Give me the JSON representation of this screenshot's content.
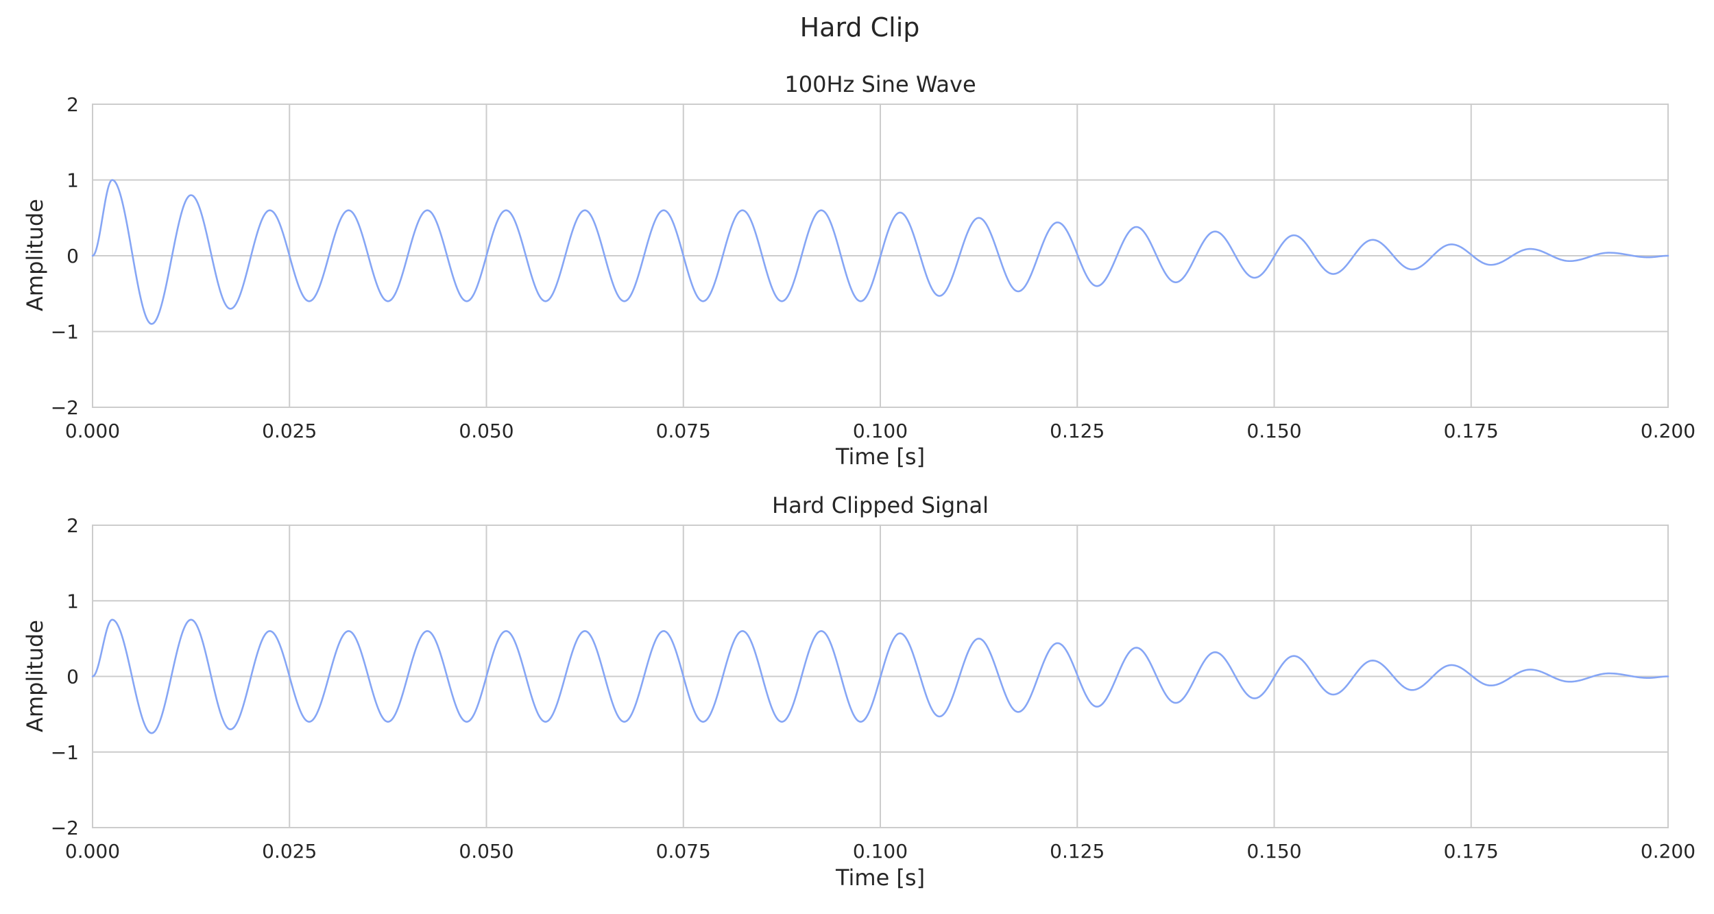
{
  "figure": {
    "title": "Hard Clip"
  },
  "colors": {
    "line": "#86a6f5",
    "grid": "#cccccc",
    "text": "#262626",
    "background": "#ffffff"
  },
  "chart_data": [
    {
      "type": "line",
      "title": "100Hz Sine Wave",
      "xlabel": "Time [s]",
      "ylabel": "Amplitude",
      "xlim": [
        0.0,
        0.2
      ],
      "ylim": [
        -2,
        2
      ],
      "grid": true,
      "xticks": [
        "0.000",
        "0.025",
        "0.050",
        "0.075",
        "0.100",
        "0.125",
        "0.150",
        "0.175",
        "0.200"
      ],
      "yticks": [
        "2",
        "1",
        "0",
        "−1",
        "−2"
      ],
      "xtick_values": [
        0.0,
        0.025,
        0.05,
        0.075,
        0.1,
        0.125,
        0.15,
        0.175,
        0.2
      ],
      "ytick_values": [
        2,
        1,
        0,
        -1,
        -2
      ],
      "series": [
        {
          "x": [
            0.0,
            0.0025,
            0.0075,
            0.0125,
            0.0175,
            0.0225,
            0.0275,
            0.0325,
            0.0375,
            0.0425,
            0.0475,
            0.0525,
            0.0575,
            0.0625,
            0.0675,
            0.0725,
            0.0775,
            0.0825,
            0.0875,
            0.0925,
            0.0975,
            0.1025,
            0.1075,
            0.1125,
            0.1175,
            0.1225,
            0.1275,
            0.1325,
            0.1375,
            0.1425,
            0.1475,
            0.1525,
            0.1575,
            0.1625,
            0.1675,
            0.1725,
            0.1775,
            0.1825,
            0.1875,
            0.1925,
            0.1975,
            0.2
          ],
          "y": [
            0.0,
            1.0,
            -0.9,
            0.8,
            -0.7,
            0.6,
            -0.6,
            0.6,
            -0.6,
            0.6,
            -0.6,
            0.6,
            -0.6,
            0.6,
            -0.6,
            0.6,
            -0.6,
            0.6,
            -0.6,
            0.6,
            -0.6,
            0.57,
            -0.53,
            0.5,
            -0.47,
            0.44,
            -0.4,
            0.38,
            -0.35,
            0.32,
            -0.29,
            0.27,
            -0.24,
            0.21,
            -0.18,
            0.15,
            -0.12,
            0.09,
            -0.07,
            0.04,
            -0.02,
            0.0
          ]
        }
      ]
    },
    {
      "type": "line",
      "title": "Hard Clipped Signal",
      "xlabel": "Time [s]",
      "ylabel": "Amplitude",
      "xlim": [
        0.0,
        0.2
      ],
      "ylim": [
        -2,
        2
      ],
      "grid": true,
      "clip_level": 0.75,
      "xticks": [
        "0.000",
        "0.025",
        "0.050",
        "0.075",
        "0.100",
        "0.125",
        "0.150",
        "0.175",
        "0.200"
      ],
      "yticks": [
        "2",
        "1",
        "0",
        "−1",
        "−2"
      ],
      "xtick_values": [
        0.0,
        0.025,
        0.05,
        0.075,
        0.1,
        0.125,
        0.15,
        0.175,
        0.2
      ],
      "ytick_values": [
        2,
        1,
        0,
        -1,
        -2
      ],
      "series": [
        {
          "x": [
            0.0,
            0.0025,
            0.0075,
            0.0125,
            0.0175,
            0.0225,
            0.0275,
            0.0325,
            0.0375,
            0.0425,
            0.0475,
            0.0525,
            0.0575,
            0.0625,
            0.0675,
            0.0725,
            0.0775,
            0.0825,
            0.0875,
            0.0925,
            0.0975,
            0.1025,
            0.1075,
            0.1125,
            0.1175,
            0.1225,
            0.1275,
            0.1325,
            0.1375,
            0.1425,
            0.1475,
            0.1525,
            0.1575,
            0.1625,
            0.1675,
            0.1725,
            0.1775,
            0.1825,
            0.1875,
            0.1925,
            0.1975,
            0.2
          ],
          "y": [
            0.0,
            0.75,
            -0.75,
            0.75,
            -0.7,
            0.6,
            -0.6,
            0.6,
            -0.6,
            0.6,
            -0.6,
            0.6,
            -0.6,
            0.6,
            -0.6,
            0.6,
            -0.6,
            0.6,
            -0.6,
            0.6,
            -0.6,
            0.57,
            -0.53,
            0.5,
            -0.47,
            0.44,
            -0.4,
            0.38,
            -0.35,
            0.32,
            -0.29,
            0.27,
            -0.24,
            0.21,
            -0.18,
            0.15,
            -0.12,
            0.09,
            -0.07,
            0.04,
            -0.02,
            0.0
          ]
        }
      ]
    }
  ]
}
